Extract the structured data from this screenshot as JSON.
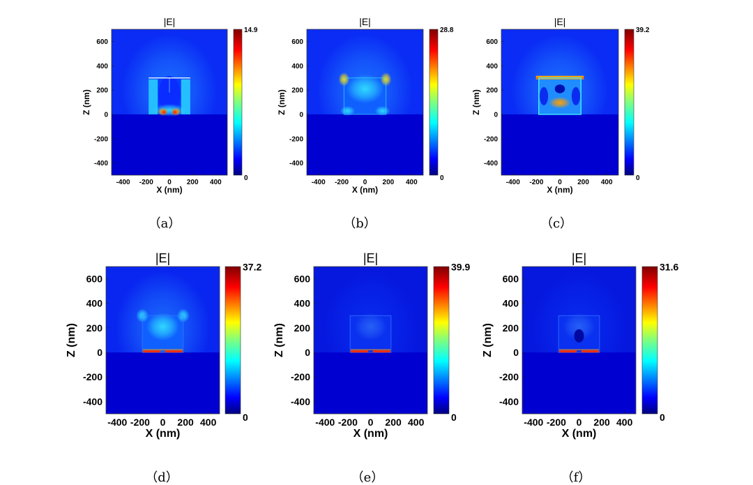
{
  "figure": {
    "panels": [
      {
        "caption": "（a）",
        "title": "|E|",
        "cbar_max_label": "14.9",
        "cbar_min_label": "0"
      },
      {
        "caption": "（b）",
        "title": "|E|",
        "cbar_max_label": "28.8",
        "cbar_min_label": "0"
      },
      {
        "caption": "（c）",
        "title": "|E|",
        "cbar_max_label": "39.2",
        "cbar_min_label": "0"
      },
      {
        "caption": "（d）",
        "title": "|E|",
        "cbar_max_label": "37.2",
        "cbar_min_label": "0"
      },
      {
        "caption": "（e）",
        "title": "|E|",
        "cbar_max_label": "39.9",
        "cbar_min_label": "0"
      },
      {
        "caption": "（f）",
        "title": "|E|",
        "cbar_max_label": "31.6",
        "cbar_min_label": "0"
      }
    ]
  },
  "chart_data": [
    {
      "type": "heatmap",
      "title": "|E|",
      "xlabel": "X (nm)",
      "ylabel": "Z (nm)",
      "xlim": [
        -500,
        500
      ],
      "ylim": [
        -500,
        700
      ],
      "xticks": [
        -400,
        -200,
        0,
        200,
        400
      ],
      "yticks": [
        -400,
        -200,
        0,
        200,
        400,
        600
      ],
      "colorbar": {
        "min": 0,
        "max": 14.9,
        "colormap": "jet"
      }
    },
    {
      "type": "heatmap",
      "title": "|E|",
      "xlabel": "X (nm)",
      "ylabel": "Z (nm)",
      "xlim": [
        -500,
        500
      ],
      "ylim": [
        -500,
        700
      ],
      "xticks": [
        -400,
        -200,
        0,
        200,
        400
      ],
      "yticks": [
        -400,
        -200,
        0,
        200,
        400,
        600
      ],
      "colorbar": {
        "min": 0,
        "max": 28.8,
        "colormap": "jet"
      }
    },
    {
      "type": "heatmap",
      "title": "|E|",
      "xlabel": "X (nm)",
      "ylabel": "Z (nm)",
      "xlim": [
        -500,
        500
      ],
      "ylim": [
        -500,
        700
      ],
      "xticks": [
        -400,
        -200,
        0,
        200,
        400
      ],
      "yticks": [
        -400,
        -200,
        0,
        200,
        400,
        600
      ],
      "colorbar": {
        "min": 0,
        "max": 39.2,
        "colormap": "jet"
      }
    },
    {
      "type": "heatmap",
      "title": "|E|",
      "xlabel": "X (nm)",
      "ylabel": "Z (nm)",
      "xlim": [
        -500,
        500
      ],
      "ylim": [
        -500,
        700
      ],
      "xticks": [
        -400,
        -200,
        0,
        200,
        400
      ],
      "yticks": [
        -400,
        -200,
        0,
        200,
        400,
        600
      ],
      "colorbar": {
        "min": 0,
        "max": 37.2,
        "colormap": "jet"
      }
    },
    {
      "type": "heatmap",
      "title": "|E|",
      "xlabel": "X (nm)",
      "ylabel": "Z (nm)",
      "xlim": [
        -500,
        500
      ],
      "ylim": [
        -500,
        700
      ],
      "xticks": [
        -400,
        -200,
        0,
        200,
        400
      ],
      "yticks": [
        -400,
        -200,
        0,
        200,
        400,
        600
      ],
      "colorbar": {
        "min": 0,
        "max": 39.9,
        "colormap": "jet"
      }
    },
    {
      "type": "heatmap",
      "title": "|E|",
      "xlabel": "X (nm)",
      "ylabel": "Z (nm)",
      "xlim": [
        -500,
        500
      ],
      "ylim": [
        -500,
        700
      ],
      "xticks": [
        -400,
        -200,
        0,
        200,
        400
      ],
      "yticks": [
        -400,
        -200,
        0,
        200,
        400,
        600
      ],
      "colorbar": {
        "min": 0,
        "max": 31.6,
        "colormap": "jet"
      }
    }
  ]
}
